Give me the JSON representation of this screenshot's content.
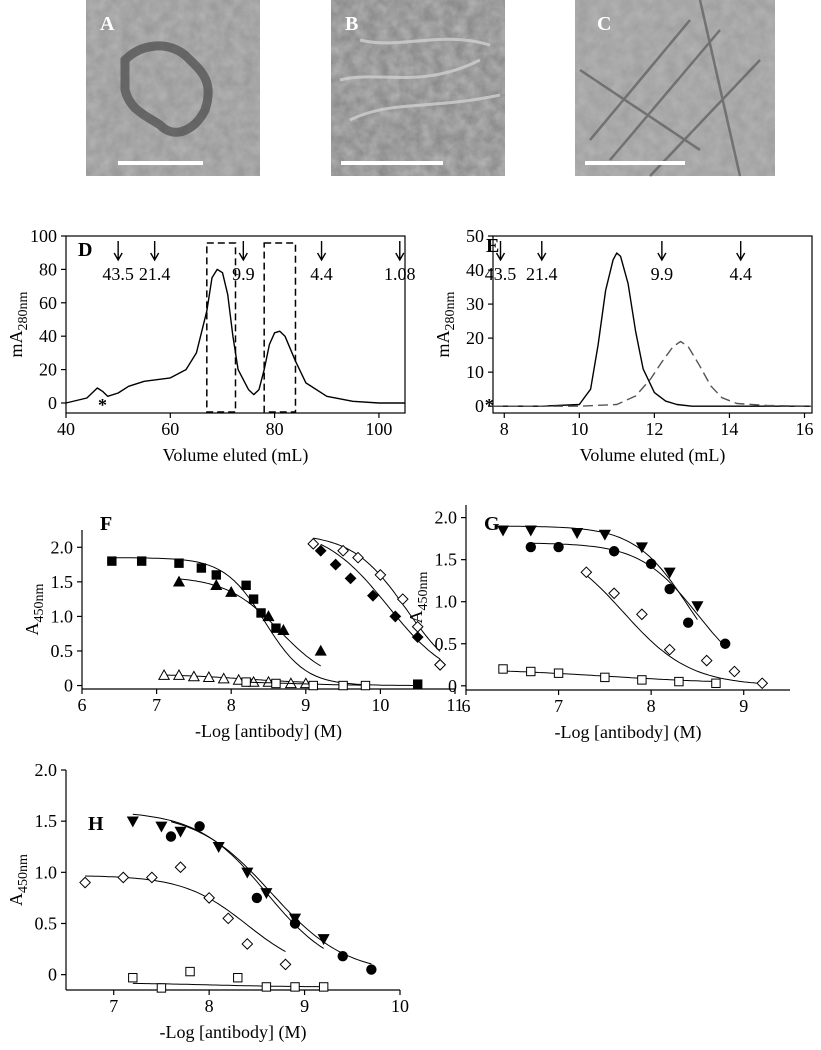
{
  "micrographs": [
    {
      "label": "A"
    },
    {
      "label": "B"
    },
    {
      "label": "C"
    }
  ],
  "chart_data": [
    {
      "type": "line",
      "panel": "D",
      "xlabel": "Volume eluted (mL)",
      "ylabel": {
        "main": "mA",
        "sub": "280nm"
      },
      "xlim": [
        40,
        105
      ],
      "ylim": [
        -6,
        100
      ],
      "xticks": [
        40,
        60,
        80,
        100
      ],
      "yticks": [
        0,
        20,
        40,
        60,
        80,
        100
      ],
      "markers": [
        {
          "x": 50,
          "label": "43.5"
        },
        {
          "x": 57,
          "label": "21.4"
        },
        {
          "x": 74,
          "label": "9.9"
        },
        {
          "x": 89,
          "label": "4.4"
        },
        {
          "x": 104,
          "label": "1.08"
        }
      ],
      "regions": [
        [
          67,
          72.5
        ],
        [
          78,
          84
        ]
      ],
      "annotations": [
        {
          "text": "*",
          "x": 47
        }
      ],
      "series": [
        {
          "color": "#000",
          "dash": false,
          "x": [
            40,
            44,
            46,
            47,
            48,
            50,
            52,
            55,
            60,
            63,
            65,
            67,
            68,
            69,
            70,
            71,
            72,
            73,
            75,
            76,
            77,
            78,
            79,
            80,
            81,
            82,
            84,
            86,
            90,
            95,
            100,
            105
          ],
          "values": [
            0,
            3,
            9,
            7,
            4,
            6,
            10,
            13,
            15,
            20,
            30,
            55,
            75,
            80,
            78,
            65,
            40,
            20,
            8,
            5,
            8,
            20,
            35,
            42,
            43,
            40,
            25,
            12,
            4,
            1,
            0,
            0
          ]
        }
      ]
    },
    {
      "type": "line",
      "panel": "E",
      "xlabel": "Volume eluted (mL)",
      "ylabel": {
        "main": "mA",
        "sub": "280nm"
      },
      "xlim": [
        7.7,
        16.2
      ],
      "ylim": [
        -2,
        50
      ],
      "xticks": [
        8,
        10,
        12,
        14,
        16
      ],
      "yticks": [
        0,
        10,
        20,
        30,
        40,
        50
      ],
      "markers": [
        {
          "x": 7.9,
          "label": "43.5"
        },
        {
          "x": 9.0,
          "label": "21.4"
        },
        {
          "x": 12.2,
          "label": "9.9"
        },
        {
          "x": 14.3,
          "label": "4.4"
        }
      ],
      "regions": [],
      "annotations": [
        {
          "text": "*",
          "x": 7.6
        }
      ],
      "series": [
        {
          "color": "#000",
          "dash": false,
          "x": [
            7.7,
            9,
            10,
            10.3,
            10.5,
            10.7,
            10.9,
            11.0,
            11.1,
            11.3,
            11.5,
            11.7,
            12.0,
            12.3,
            12.6,
            13,
            14,
            16.2
          ],
          "values": [
            0,
            0,
            0.5,
            5,
            18,
            34,
            43,
            45,
            44,
            36,
            22,
            11,
            4,
            1.5,
            0.5,
            0,
            0,
            0
          ]
        },
        {
          "color": "#555",
          "dash": true,
          "x": [
            7.7,
            10,
            11,
            11.5,
            11.9,
            12.2,
            12.5,
            12.7,
            12.9,
            13.2,
            13.5,
            13.8,
            14.2,
            15,
            16.2
          ],
          "values": [
            0,
            0,
            0.5,
            3,
            8,
            13,
            17.5,
            19,
            17.5,
            12,
            6,
            2.5,
            0.8,
            0.2,
            0
          ]
        }
      ]
    },
    {
      "type": "scatter",
      "panel": "F",
      "xlabel": "-Log [antibody] (M)",
      "ylabel": {
        "main": "A",
        "sub": "450nm"
      },
      "xlim": [
        6,
        11
      ],
      "ylim": [
        -0.05,
        2.25
      ],
      "xticks": [
        6,
        7,
        8,
        9,
        10,
        11
      ],
      "yticks": [
        0,
        0.5,
        {
          "value": 1,
          "label": "1.0"
        },
        1.5,
        {
          "value": 2,
          "label": "2.0"
        }
      ],
      "series": [
        {
          "marker": "square",
          "filled": true,
          "x": [
            6.4,
            6.8,
            7.3,
            7.6,
            7.8,
            8.2,
            8.3,
            8.4,
            8.6,
            10.5
          ],
          "values": [
            1.8,
            1.8,
            1.77,
            1.7,
            1.6,
            1.45,
            1.25,
            1.05,
            0.83,
            0.02
          ],
          "fit": {
            "top": 1.85,
            "bottom": 0,
            "ec50": 8.45,
            "slope": 1.6
          }
        },
        {
          "marker": "triangle-up",
          "filled": true,
          "x": [
            7.3,
            7.8,
            8.0,
            8.5,
            8.7,
            9.2
          ],
          "values": [
            1.5,
            1.45,
            1.35,
            1.0,
            0.8,
            0.5
          ],
          "fit": {
            "top": 1.58,
            "bottom": 0,
            "ec50": 8.65,
            "slope": 1.2
          }
        },
        {
          "marker": "diamond",
          "filled": true,
          "x": [
            9.2,
            9.4,
            9.6,
            9.9,
            10.2,
            10.5,
            10.8
          ],
          "values": [
            1.95,
            1.75,
            1.55,
            1.3,
            1.0,
            0.7,
            0.3
          ],
          "fit": {
            "top": 2.3,
            "bottom": 0,
            "ec50": 10.1,
            "slope": 1.0
          }
        },
        {
          "marker": "diamond",
          "filled": false,
          "x": [
            9.1,
            9.5,
            9.7,
            10.0,
            10.3,
            10.5,
            10.8
          ],
          "values": [
            2.05,
            1.95,
            1.85,
            1.6,
            1.25,
            0.85,
            0.3
          ],
          "fit": {
            "top": 2.2,
            "bottom": 0,
            "ec50": 10.35,
            "slope": 1.2
          }
        },
        {
          "marker": "triangle-up",
          "filled": false,
          "x": [
            7.1,
            7.3,
            7.5,
            7.7,
            7.9,
            8.1,
            8.3,
            8.5,
            8.8,
            9.0
          ],
          "values": [
            0.15,
            0.15,
            0.13,
            0.12,
            0.1,
            0.08,
            0.05,
            0.05,
            0.03,
            0.03
          ],
          "fit": {
            "top": 0.17,
            "bottom": 0.02,
            "ec50": 8.2,
            "slope": 0.8
          }
        },
        {
          "marker": "square",
          "filled": false,
          "x": [
            8.2,
            8.6,
            9.1,
            9.5,
            9.8
          ],
          "values": [
            0.05,
            0.03,
            0.0,
            0.0,
            0.0
          ],
          "fit": {
            "top": 0.06,
            "bottom": 0,
            "ec50": 8.8,
            "slope": 1.0
          }
        }
      ]
    },
    {
      "type": "scatter",
      "panel": "G",
      "xlabel": "-Log [antibody] (M)",
      "ylabel": {
        "main": "A",
        "sub": "450nm"
      },
      "xlim": [
        6,
        9.5
      ],
      "ylim": [
        -0.05,
        2.15
      ],
      "xticks": [
        6,
        7,
        8,
        9
      ],
      "yticks": [
        0,
        0.5,
        {
          "value": 1,
          "label": "1.0"
        },
        1.5,
        {
          "value": 2,
          "label": "2.0"
        }
      ],
      "series": [
        {
          "marker": "triangle-down",
          "filled": true,
          "x": [
            6.4,
            6.7,
            7.2,
            7.5,
            7.9,
            8.2,
            8.5
          ],
          "values": [
            1.85,
            1.85,
            1.82,
            1.8,
            1.65,
            1.35,
            0.95
          ],
          "fit": {
            "top": 1.9,
            "bottom": 0,
            "ec50": 8.4,
            "slope": 1.5
          }
        },
        {
          "marker": "circle",
          "filled": true,
          "x": [
            6.7,
            7.0,
            7.6,
            8.0,
            8.2,
            8.4,
            8.8
          ],
          "values": [
            1.65,
            1.65,
            1.6,
            1.45,
            1.15,
            0.75,
            0.5
          ],
          "fit": {
            "top": 1.7,
            "bottom": 0,
            "ec50": 8.5,
            "slope": 1.4
          }
        },
        {
          "marker": "diamond",
          "filled": false,
          "x": [
            7.3,
            7.6,
            7.9,
            8.2,
            8.6,
            8.9,
            9.2
          ],
          "values": [
            1.35,
            1.1,
            0.85,
            0.43,
            0.3,
            0.17,
            0.03
          ],
          "fit": {
            "top": 1.75,
            "bottom": 0,
            "ec50": 7.7,
            "slope": 1.2
          }
        },
        {
          "marker": "square",
          "filled": false,
          "x": [
            6.4,
            6.7,
            7.0,
            7.5,
            7.9,
            8.3,
            8.7
          ],
          "values": [
            0.2,
            0.17,
            0.15,
            0.1,
            0.07,
            0.05,
            0.03
          ],
          "fit": {
            "top": 0.21,
            "bottom": 0.02,
            "ec50": 7.5,
            "slope": 0.6
          }
        }
      ]
    },
    {
      "type": "scatter",
      "panel": "H",
      "xlabel": "-Log [antibody] (M)",
      "ylabel": {
        "main": "A",
        "sub": "450nm"
      },
      "xlim": [
        6.5,
        10
      ],
      "ylim": [
        -0.15,
        2.0
      ],
      "xticks": [
        7,
        8,
        9,
        10
      ],
      "yticks": [
        0,
        0.5,
        {
          "value": 1,
          "label": "1.0"
        },
        1.5,
        {
          "value": 2,
          "label": "2.0"
        }
      ],
      "series": [
        {
          "marker": "triangle-down",
          "filled": true,
          "x": [
            7.2,
            7.5,
            7.7,
            8.1,
            8.4,
            8.6,
            8.9,
            9.2
          ],
          "values": [
            1.5,
            1.45,
            1.4,
            1.25,
            1.0,
            0.8,
            0.55,
            0.35
          ],
          "fit": {
            "top": 1.6,
            "bottom": 0,
            "ec50": 8.6,
            "slope": 1.2
          }
        },
        {
          "marker": "circle",
          "filled": true,
          "x": [
            7.6,
            7.9,
            8.5,
            8.9,
            9.4,
            9.7
          ],
          "values": [
            1.35,
            1.45,
            0.75,
            0.5,
            0.18,
            0.05
          ],
          "fit": {
            "top": 1.6,
            "bottom": 0,
            "ec50": 8.65,
            "slope": 1.1
          }
        },
        {
          "marker": "diamond",
          "filled": false,
          "x": [
            6.7,
            7.1,
            7.4,
            7.7,
            8.0,
            8.2,
            8.4,
            8.8
          ],
          "values": [
            0.9,
            0.95,
            0.95,
            1.05,
            0.75,
            0.55,
            0.3,
            0.1
          ],
          "fit": {
            "top": 0.97,
            "bottom": 0,
            "ec50": 8.4,
            "slope": 1.3
          }
        },
        {
          "marker": "square",
          "filled": false,
          "x": [
            7.2,
            7.5,
            7.8,
            8.3,
            8.6,
            8.9,
            9.2
          ],
          "values": [
            -0.03,
            -0.13,
            0.03,
            -0.03,
            -0.12,
            -0.12,
            -0.12
          ],
          "fit": {
            "top": -0.08,
            "bottom": -0.12,
            "ec50": 8.0,
            "slope": 1.0
          }
        }
      ]
    }
  ]
}
